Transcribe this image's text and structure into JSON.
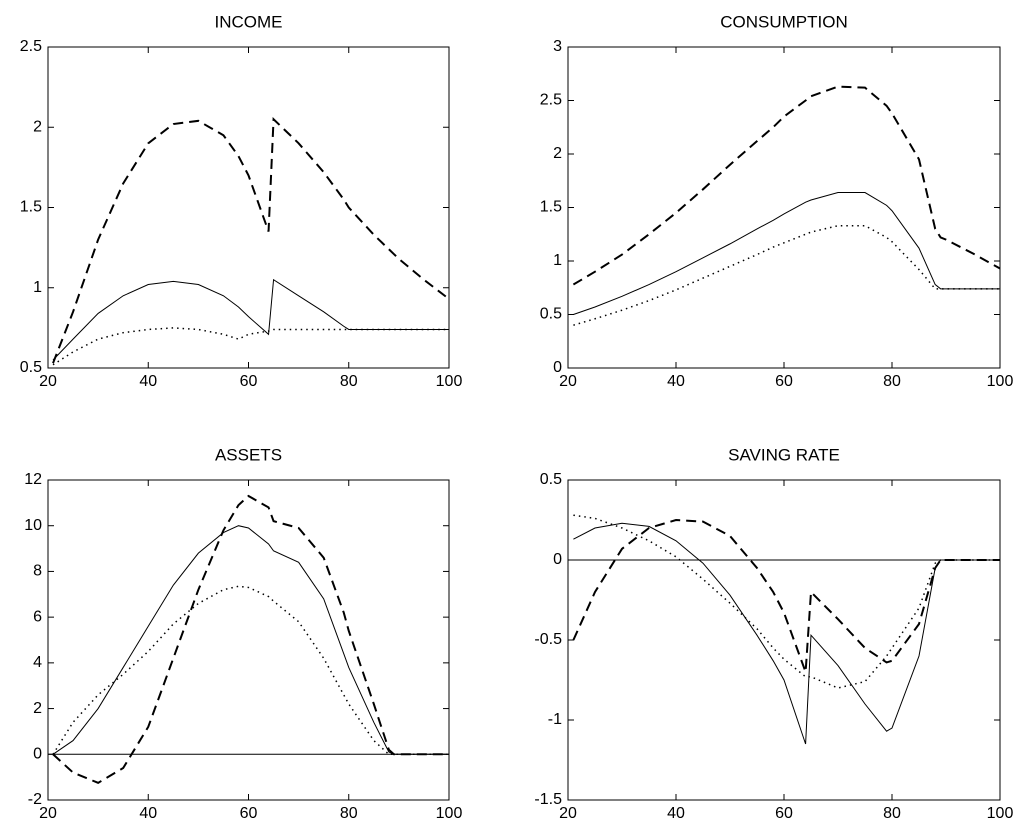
{
  "chart_data": [
    {
      "type": "line",
      "title": "INCOME",
      "x": [
        21,
        25,
        30,
        35,
        40,
        45,
        50,
        55,
        58,
        60,
        64,
        65,
        70,
        75,
        79,
        80,
        85,
        88,
        89,
        90,
        95,
        100
      ],
      "xlim": [
        20,
        100
      ],
      "xticks": [
        20,
        40,
        60,
        80,
        100
      ],
      "ylim": [
        0.5,
        2.5
      ],
      "yticks": [
        0.5,
        1,
        1.5,
        2,
        2.5
      ],
      "zero_line": false,
      "series": [
        {
          "color": "#000000",
          "dash": "dashed",
          "values": [
            0.53,
            0.85,
            1.3,
            1.65,
            1.9,
            2.02,
            2.04,
            1.95,
            1.82,
            1.7,
            1.35,
            2.05,
            1.9,
            1.72,
            1.55,
            1.5,
            1.33,
            1.24,
            1.21,
            1.18,
            1.05,
            0.93
          ]
        },
        {
          "color": "#000000",
          "dash": "solid",
          "values": [
            0.55,
            0.68,
            0.84,
            0.95,
            1.02,
            1.04,
            1.02,
            0.95,
            0.88,
            0.82,
            0.71,
            1.05,
            0.95,
            0.85,
            0.76,
            0.74,
            0.74,
            0.74,
            0.74,
            0.74,
            0.74,
            0.74
          ]
        },
        {
          "color": "#000000",
          "dash": "dotted",
          "values": [
            0.52,
            0.6,
            0.68,
            0.72,
            0.74,
            0.75,
            0.74,
            0.71,
            0.68,
            0.71,
            0.73,
            0.74,
            0.74,
            0.74,
            0.74,
            0.74,
            0.74,
            0.74,
            0.74,
            0.74,
            0.74,
            0.74
          ]
        }
      ]
    },
    {
      "type": "line",
      "title": "CONSUMPTION",
      "x": [
        21,
        25,
        30,
        35,
        40,
        45,
        50,
        55,
        58,
        60,
        64,
        65,
        70,
        75,
        79,
        80,
        85,
        88,
        89,
        90,
        95,
        100
      ],
      "xlim": [
        20,
        100
      ],
      "xticks": [
        20,
        40,
        60,
        80,
        100
      ],
      "ylim": [
        0,
        3
      ],
      "yticks": [
        0,
        0.5,
        1,
        1.5,
        2,
        2.5,
        3
      ],
      "zero_line": false,
      "series": [
        {
          "color": "#000000",
          "dash": "dashed",
          "values": [
            0.78,
            0.9,
            1.06,
            1.25,
            1.45,
            1.67,
            1.9,
            2.12,
            2.25,
            2.35,
            2.5,
            2.54,
            2.63,
            2.62,
            2.45,
            2.38,
            1.95,
            1.3,
            1.22,
            1.2,
            1.07,
            0.93
          ]
        },
        {
          "color": "#000000",
          "dash": "solid",
          "values": [
            0.5,
            0.57,
            0.67,
            0.78,
            0.9,
            1.03,
            1.16,
            1.3,
            1.38,
            1.44,
            1.55,
            1.57,
            1.64,
            1.64,
            1.52,
            1.47,
            1.12,
            0.78,
            0.74,
            0.74,
            0.74,
            0.74
          ]
        },
        {
          "color": "#000000",
          "dash": "dotted",
          "values": [
            0.4,
            0.46,
            0.54,
            0.63,
            0.73,
            0.84,
            0.95,
            1.06,
            1.13,
            1.17,
            1.25,
            1.27,
            1.33,
            1.33,
            1.22,
            1.18,
            0.92,
            0.74,
            0.74,
            0.74,
            0.74,
            0.74
          ]
        }
      ]
    },
    {
      "type": "line",
      "title": "ASSETS",
      "x": [
        21,
        25,
        30,
        35,
        40,
        45,
        50,
        55,
        58,
        60,
        64,
        65,
        70,
        75,
        79,
        80,
        85,
        88,
        89,
        90,
        95,
        100
      ],
      "xlim": [
        20,
        100
      ],
      "xticks": [
        20,
        40,
        60,
        80,
        100
      ],
      "ylim": [
        -2,
        12
      ],
      "yticks": [
        -2,
        0,
        2,
        4,
        6,
        8,
        10,
        12
      ],
      "zero_line": true,
      "series": [
        {
          "color": "#000000",
          "dash": "dashed",
          "values": [
            0,
            -0.8,
            -1.25,
            -0.6,
            1.2,
            4.2,
            7.2,
            9.8,
            10.9,
            11.3,
            10.8,
            10.2,
            9.9,
            8.6,
            6.2,
            5.4,
            2.2,
            0.2,
            0,
            0,
            0,
            0
          ]
        },
        {
          "color": "#000000",
          "dash": "solid",
          "values": [
            0,
            0.6,
            2,
            3.8,
            5.6,
            7.4,
            8.8,
            9.7,
            10,
            9.9,
            9.2,
            8.9,
            8.4,
            6.8,
            4.4,
            3.8,
            1.4,
            0.1,
            0,
            0,
            0,
            0
          ]
        },
        {
          "color": "#000000",
          "dash": "dotted",
          "values": [
            0,
            1.4,
            2.6,
            3.5,
            4.5,
            5.7,
            6.6,
            7.2,
            7.35,
            7.3,
            6.9,
            6.7,
            5.8,
            4.2,
            2.6,
            2.2,
            0.6,
            0,
            0,
            0,
            0,
            0
          ]
        }
      ]
    },
    {
      "type": "line",
      "title": "SAVING RATE",
      "x": [
        21,
        25,
        30,
        35,
        40,
        45,
        50,
        55,
        58,
        60,
        64,
        65,
        70,
        75,
        79,
        80,
        85,
        88,
        89,
        90,
        95,
        100
      ],
      "xlim": [
        20,
        100
      ],
      "xticks": [
        20,
        40,
        60,
        80,
        100
      ],
      "ylim": [
        -1.5,
        0.5
      ],
      "yticks": [
        -1.5,
        -1,
        -0.5,
        0,
        0.5
      ],
      "zero_line": true,
      "series": [
        {
          "color": "#000000",
          "dash": "dashed",
          "values": [
            -0.5,
            -0.2,
            0.07,
            0.2,
            0.25,
            0.24,
            0.15,
            -0.05,
            -0.2,
            -0.33,
            -0.7,
            -0.2,
            -0.37,
            -0.55,
            -0.64,
            -0.63,
            -0.4,
            -0.05,
            0,
            0,
            0,
            0
          ]
        },
        {
          "color": "#000000",
          "dash": "solid",
          "values": [
            0.13,
            0.2,
            0.23,
            0.21,
            0.12,
            -0.02,
            -0.22,
            -0.47,
            -0.63,
            -0.75,
            -1.15,
            -0.47,
            -0.66,
            -0.9,
            -1.07,
            -1.05,
            -0.6,
            -0.05,
            0,
            0,
            0,
            0
          ]
        },
        {
          "color": "#000000",
          "dash": "dotted",
          "values": [
            0.28,
            0.26,
            0.2,
            0.12,
            0.02,
            -0.12,
            -0.27,
            -0.43,
            -0.55,
            -0.62,
            -0.73,
            -0.73,
            -0.8,
            -0.76,
            -0.6,
            -0.55,
            -0.3,
            -0.02,
            0,
            0,
            0,
            0
          ]
        }
      ]
    }
  ]
}
